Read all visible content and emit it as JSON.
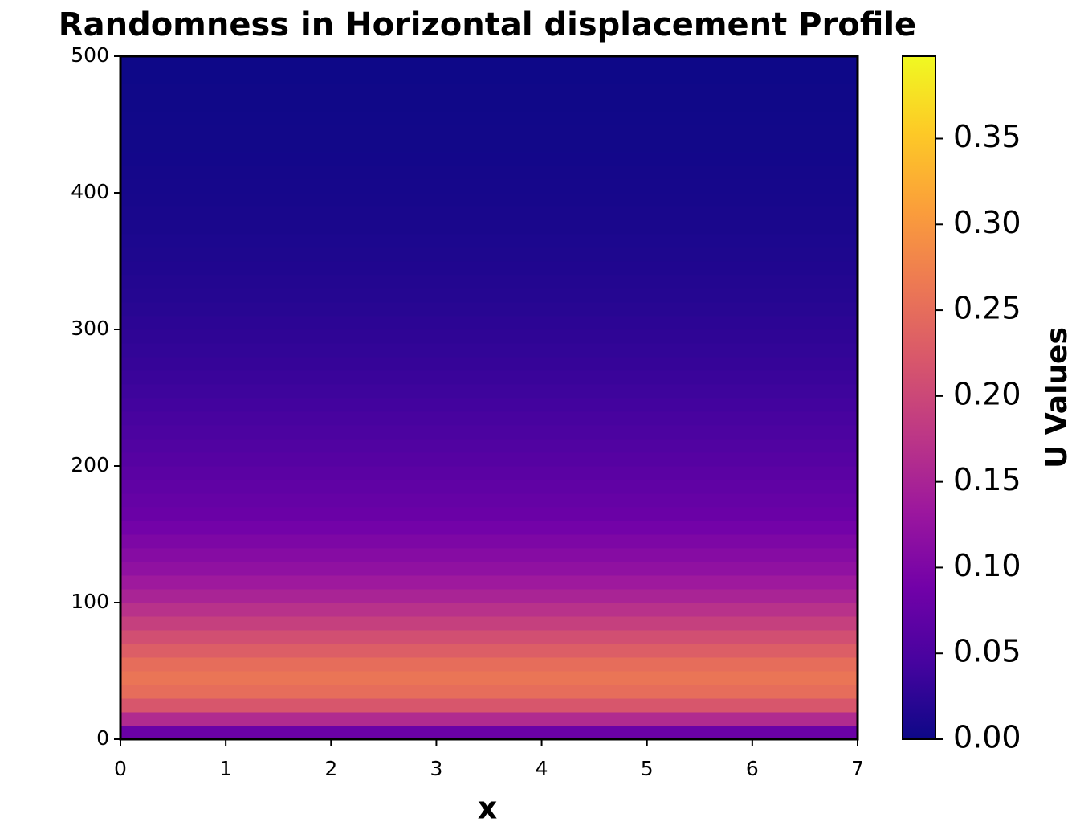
{
  "chart_data": {
    "type": "heatmap",
    "title": "Randomness in Horizontal displacement Profile",
    "xlabel": "x",
    "colorbar_label": "U Values",
    "colormap": "plasma",
    "xlim": [
      0,
      7
    ],
    "xticks": [
      0,
      1,
      2,
      3,
      4,
      5,
      6,
      7
    ],
    "ylim": [
      0,
      500
    ],
    "yticks": [
      0,
      100,
      200,
      300,
      400,
      500
    ],
    "clim": [
      0,
      0.398
    ],
    "cticks": [
      {
        "value": 0,
        "label": "0.00"
      },
      0.05,
      {
        "value": 0.1,
        "label": "0.10"
      },
      0.15,
      {
        "value": 0.2,
        "label": "0.20"
      },
      0.25,
      {
        "value": 0.3,
        "label": "0.30"
      },
      0.35
    ],
    "y_bins": [
      0,
      10,
      20,
      30,
      40,
      50,
      60,
      70,
      80,
      90,
      100,
      110,
      120,
      130,
      140,
      150,
      160,
      170,
      180,
      190,
      200,
      210,
      220,
      230,
      240,
      250,
      260,
      270,
      280,
      290,
      300,
      310,
      320,
      330,
      340,
      350,
      360,
      370,
      380,
      390,
      400,
      410,
      420,
      430,
      440,
      450,
      460,
      470,
      480,
      490,
      500
    ],
    "values": [
      0.08,
      0.16,
      0.22,
      0.25,
      0.26,
      0.25,
      0.23,
      0.21,
      0.19,
      0.17,
      0.15,
      0.135,
      0.12,
      0.11,
      0.1,
      0.09,
      0.08,
      0.075,
      0.07,
      0.065,
      0.06,
      0.055,
      0.05,
      0.046,
      0.042,
      0.038,
      0.035,
      0.032,
      0.029,
      0.026,
      0.024,
      0.021,
      0.019,
      0.017,
      0.015,
      0.013,
      0.012,
      0.01,
      0.009,
      0.008,
      0.007,
      0.006,
      0.005,
      0.004,
      0.004,
      0.003,
      0.002,
      0.002,
      0.001,
      0.001
    ]
  }
}
